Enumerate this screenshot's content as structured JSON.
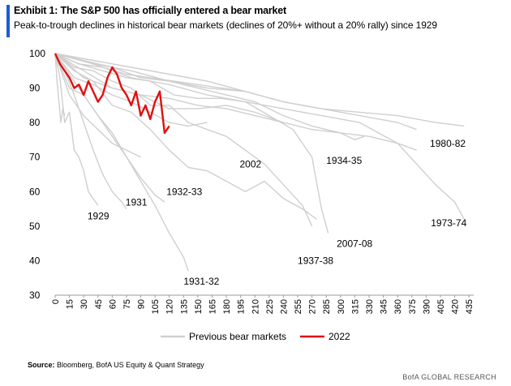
{
  "header": {
    "title": "Exhibit 1: The S&P 500 has officially entered a bear market",
    "subtitle": "Peak-to-trough declines in historical bear markets (declines of 20%+ without a 20% rally) since 1929"
  },
  "footer": {
    "source_label": "Source:",
    "source_text": "Bloomberg, BofA US Equity & Quant Strategy",
    "brand": "BofA GLOBAL RESEARCH"
  },
  "colors": {
    "accent": "#1e5bd6",
    "previous": "#cfcfcf",
    "current": "#e01010",
    "axis": "#999999"
  },
  "chart_data": {
    "type": "line",
    "title": "Exhibit 1: The S&P 500 has officially entered a bear market",
    "xlabel": "",
    "ylabel": "",
    "xlim": [
      0,
      440
    ],
    "ylim": [
      30,
      100
    ],
    "y_ticks": [
      "30",
      "40",
      "50",
      "60",
      "70",
      "80",
      "90",
      "100"
    ],
    "x_ticks": [
      "0",
      "15",
      "30",
      "45",
      "60",
      "75",
      "90",
      "105",
      "120",
      "135",
      "150",
      "165",
      "180",
      "195",
      "210",
      "225",
      "240",
      "255",
      "270",
      "285",
      "300",
      "315",
      "330",
      "345",
      "360",
      "375",
      "390",
      "405",
      "420",
      "435"
    ],
    "legend": {
      "position": "bottom",
      "entries": [
        "Previous bear markets",
        "2022"
      ]
    },
    "series": [
      {
        "name": "2022",
        "group": "2022",
        "x": [
          0,
          5,
          10,
          15,
          20,
          25,
          30,
          35,
          40,
          45,
          50,
          55,
          60,
          65,
          70,
          75,
          80,
          85,
          90,
          95,
          100,
          105,
          110,
          115,
          120
        ],
        "y": [
          100,
          97,
          95,
          93,
          90,
          91,
          88,
          92,
          89,
          86,
          88,
          93,
          96,
          94,
          90,
          88,
          85,
          89,
          82,
          85,
          81,
          86,
          89,
          77,
          79
        ]
      },
      {
        "name": "1929",
        "group": "previous",
        "x": [
          0,
          5,
          10,
          15,
          20,
          25,
          30,
          35,
          40,
          45
        ],
        "y": [
          100,
          93,
          80,
          83,
          72,
          70,
          66,
          60,
          58,
          56
        ]
      },
      {
        "name": "1931",
        "group": "previous",
        "x": [
          0,
          10,
          20,
          30,
          40,
          50,
          60,
          70,
          75
        ],
        "y": [
          100,
          95,
          88,
          80,
          72,
          65,
          60,
          57,
          55
        ]
      },
      {
        "name": "1932-33",
        "group": "previous",
        "x": [
          0,
          15,
          30,
          45,
          60,
          75,
          90,
          105,
          115
        ],
        "y": [
          100,
          94,
          88,
          82,
          76,
          70,
          64,
          59,
          57
        ]
      },
      {
        "name": "1931-32",
        "group": "previous",
        "x": [
          0,
          15,
          30,
          45,
          60,
          75,
          90,
          105,
          120,
          135,
          140
        ],
        "y": [
          100,
          90,
          88,
          82,
          77,
          70,
          63,
          56,
          48,
          41,
          37
        ]
      },
      {
        "name": "2002",
        "group": "previous",
        "x": [
          0,
          20,
          40,
          60,
          80,
          100,
          120,
          140,
          160,
          180,
          200,
          220,
          240,
          260,
          275
        ],
        "y": [
          100,
          95,
          92,
          85,
          83,
          78,
          72,
          67,
          66,
          63,
          60,
          63,
          58,
          55,
          52
        ]
      },
      {
        "name": "1937-38",
        "group": "previous",
        "x": [
          0,
          20,
          40,
          60,
          80,
          100,
          120,
          140,
          160,
          180,
          200,
          220,
          240,
          260,
          270
        ],
        "y": [
          100,
          96,
          95,
          92,
          90,
          85,
          85,
          80,
          78,
          76,
          72,
          68,
          62,
          56,
          50
        ]
      },
      {
        "name": "2007-08",
        "group": "previous",
        "x": [
          0,
          25,
          50,
          75,
          100,
          125,
          150,
          175,
          200,
          225,
          250,
          270,
          280,
          287
        ],
        "y": [
          100,
          97,
          95,
          93,
          92,
          88,
          87,
          87,
          86,
          82,
          78,
          70,
          55,
          48
        ]
      },
      {
        "name": "1934-35",
        "group": "previous",
        "x": [
          0,
          30,
          60,
          90,
          120,
          150,
          180,
          210,
          240,
          270,
          300,
          315,
          325
        ],
        "y": [
          100,
          98,
          96,
          93,
          92,
          90,
          88,
          86,
          82,
          79,
          77,
          75,
          76
        ]
      },
      {
        "name": "1980-82",
        "group": "previous",
        "x": [
          0,
          40,
          80,
          120,
          160,
          200,
          240,
          280,
          320,
          360,
          400,
          430
        ],
        "y": [
          100,
          98,
          96,
          94,
          92,
          89,
          86,
          84,
          83,
          82,
          80,
          79
        ]
      },
      {
        "name": "1973-74",
        "group": "previous",
        "x": [
          0,
          40,
          80,
          120,
          160,
          200,
          240,
          280,
          320,
          360,
          380,
          400,
          420,
          430
        ],
        "y": [
          100,
          97,
          93,
          91,
          88,
          86,
          84,
          82,
          80,
          74,
          68,
          62,
          57,
          52
        ]
      },
      {
        "name": "",
        "group": "previous",
        "x": [
          0,
          15,
          30,
          45,
          60,
          75,
          90
        ],
        "y": [
          100,
          88,
          82,
          78,
          74,
          72,
          70
        ]
      },
      {
        "name": "",
        "group": "previous",
        "x": [
          0,
          20,
          40,
          60,
          80,
          100,
          120,
          140,
          160
        ],
        "y": [
          100,
          93,
          91,
          88,
          86,
          83,
          80,
          79,
          80
        ]
      },
      {
        "name": "",
        "group": "previous",
        "x": [
          0,
          30,
          60,
          90,
          120,
          150,
          180,
          210,
          240
        ],
        "y": [
          100,
          93,
          90,
          88,
          87,
          85,
          84,
          82,
          80
        ]
      },
      {
        "name": "",
        "group": "previous",
        "x": [
          0,
          30,
          60,
          90,
          120,
          150,
          180,
          210,
          240,
          270,
          300,
          330,
          360,
          380
        ],
        "y": [
          100,
          95,
          90,
          88,
          84,
          84,
          85,
          83,
          80,
          78,
          77,
          76,
          74,
          72
        ]
      },
      {
        "name": "",
        "group": "previous",
        "x": [
          0,
          25,
          50,
          75,
          100,
          125,
          150,
          175,
          200
        ],
        "y": [
          100,
          97,
          96,
          94,
          93,
          92,
          91,
          90,
          89
        ]
      },
      {
        "name": "",
        "group": "previous",
        "x": [
          0,
          40,
          80,
          120,
          160,
          200,
          240,
          280,
          320,
          360,
          380
        ],
        "y": [
          100,
          97,
          95,
          92,
          90,
          89,
          86,
          84,
          82,
          80,
          78
        ]
      },
      {
        "name": "",
        "group": "previous",
        "x": [
          0,
          2,
          4,
          6,
          8,
          10
        ],
        "y": [
          100,
          92,
          86,
          80,
          84,
          82
        ]
      }
    ],
    "annotations": [
      {
        "text": "1929",
        "x": 34,
        "y": 52
      },
      {
        "text": "1931",
        "x": 74,
        "y": 56
      },
      {
        "text": "1932-33",
        "x": 117,
        "y": 59
      },
      {
        "text": "1931-32",
        "x": 135,
        "y": 33
      },
      {
        "text": "2002",
        "x": 194,
        "y": 67
      },
      {
        "text": "1934-35",
        "x": 285,
        "y": 68
      },
      {
        "text": "1937-38",
        "x": 255,
        "y": 39
      },
      {
        "text": "2007-08",
        "x": 296,
        "y": 44
      },
      {
        "text": "1980-82",
        "x": 394,
        "y": 73
      },
      {
        "text": "1973-74",
        "x": 395,
        "y": 50
      }
    ]
  }
}
